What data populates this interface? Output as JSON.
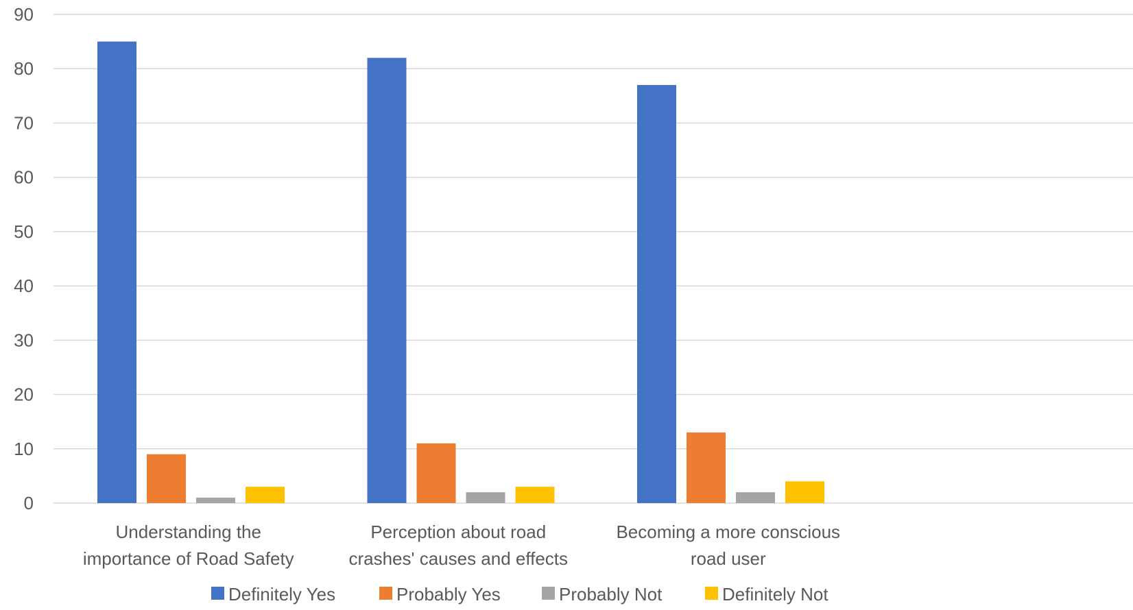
{
  "chart_data": {
    "type": "bar",
    "title": "",
    "xlabel": "",
    "ylabel": "",
    "ylim": [
      0,
      90
    ],
    "yticks": [
      0,
      10,
      20,
      30,
      40,
      50,
      60,
      70,
      80,
      90
    ],
    "grid": true,
    "legend_position": "bottom",
    "categories": [
      [
        "Understanding the",
        "importance of Road Safety"
      ],
      [
        "Perception about road",
        "crashes' causes and effects"
      ],
      [
        "Becoming a more conscious",
        "road user"
      ],
      [
        "",
        ""
      ]
    ],
    "series": [
      {
        "name": "Definitely Yes",
        "color": "#4472C4",
        "values": [
          85,
          82,
          77,
          null
        ]
      },
      {
        "name": "Probably Yes",
        "color": "#ED7D31",
        "values": [
          9,
          11,
          13,
          null
        ]
      },
      {
        "name": "Probably Not",
        "color": "#A5A5A5",
        "values": [
          1,
          2,
          2,
          null
        ]
      },
      {
        "name": "Definitely Not",
        "color": "#FFC000",
        "values": [
          3,
          3,
          4,
          null
        ]
      }
    ],
    "colors": {
      "gridline": "#D9D9D9",
      "text": "#595959"
    }
  }
}
